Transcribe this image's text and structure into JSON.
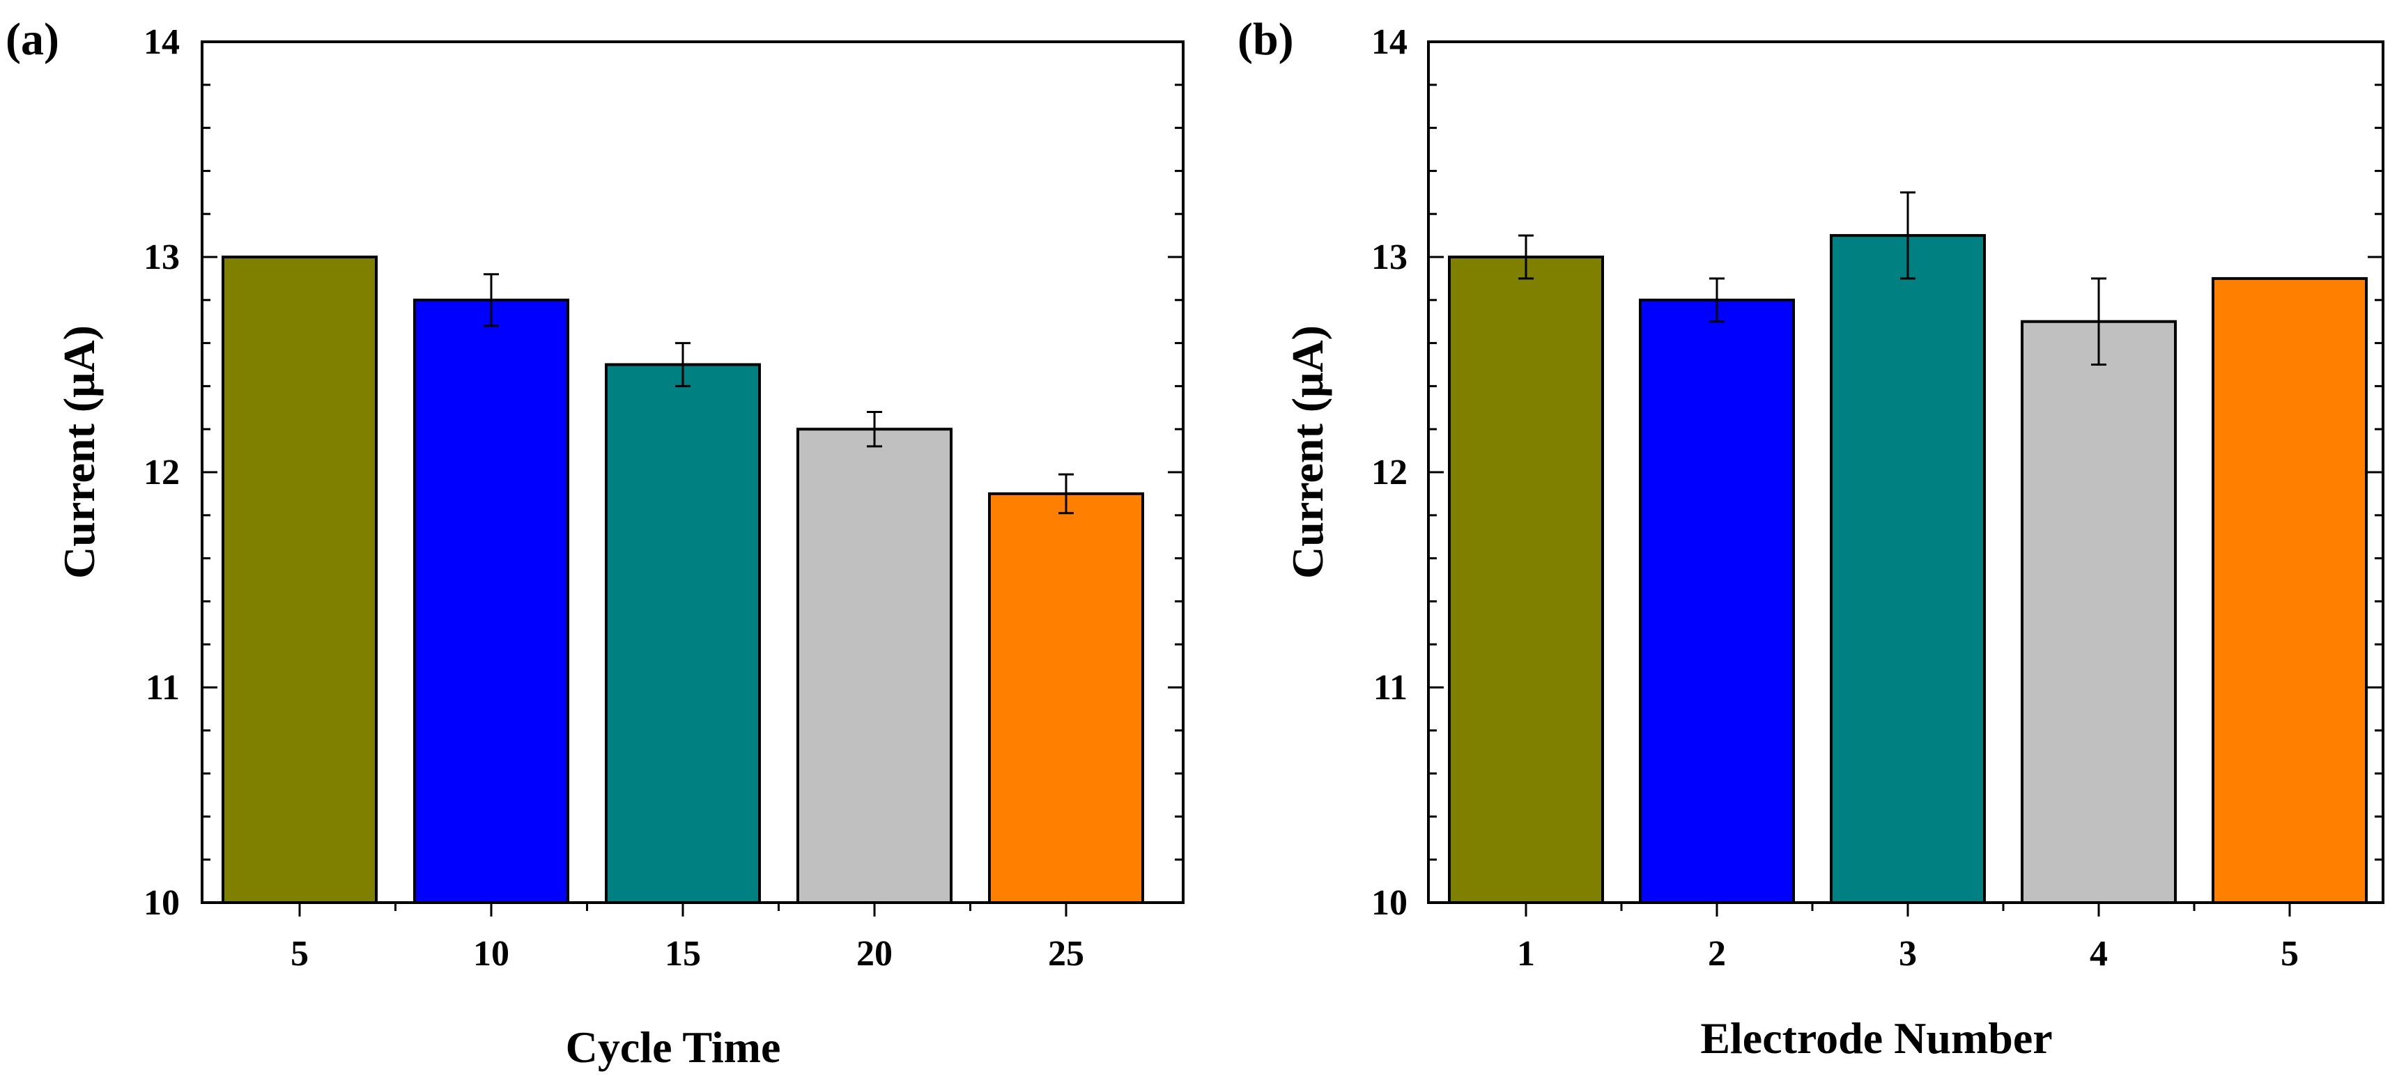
{
  "chart_data": [
    {
      "type": "bar",
      "panel_label": "(a)",
      "categories": [
        "5",
        "10",
        "15",
        "20",
        "25"
      ],
      "values": [
        13.0,
        12.8,
        12.5,
        12.2,
        11.9
      ],
      "errors": [
        0.0,
        0.12,
        0.1,
        0.08,
        0.09
      ],
      "colors": [
        "#808000",
        "#0000ff",
        "#008080",
        "#c0c0c0",
        "#ff8000"
      ],
      "xlabel": "Cycle Time",
      "ylabel": "Current (μA)",
      "ylim": [
        10,
        14
      ],
      "yticks": [
        "10",
        "11",
        "12",
        "13",
        "14"
      ]
    },
    {
      "type": "bar",
      "panel_label": "(b)",
      "categories": [
        "1",
        "2",
        "3",
        "4",
        "5"
      ],
      "values": [
        13.0,
        12.8,
        13.1,
        12.7,
        12.9
      ],
      "errors": [
        0.1,
        0.1,
        0.2,
        0.2,
        0.0
      ],
      "colors": [
        "#808000",
        "#0000ff",
        "#008080",
        "#c0c0c0",
        "#ff8000"
      ],
      "xlabel": "Electrode Number",
      "ylabel": "Current (μA)",
      "ylim": [
        10,
        14
      ],
      "yticks": [
        "10",
        "11",
        "12",
        "13",
        "14"
      ]
    }
  ]
}
